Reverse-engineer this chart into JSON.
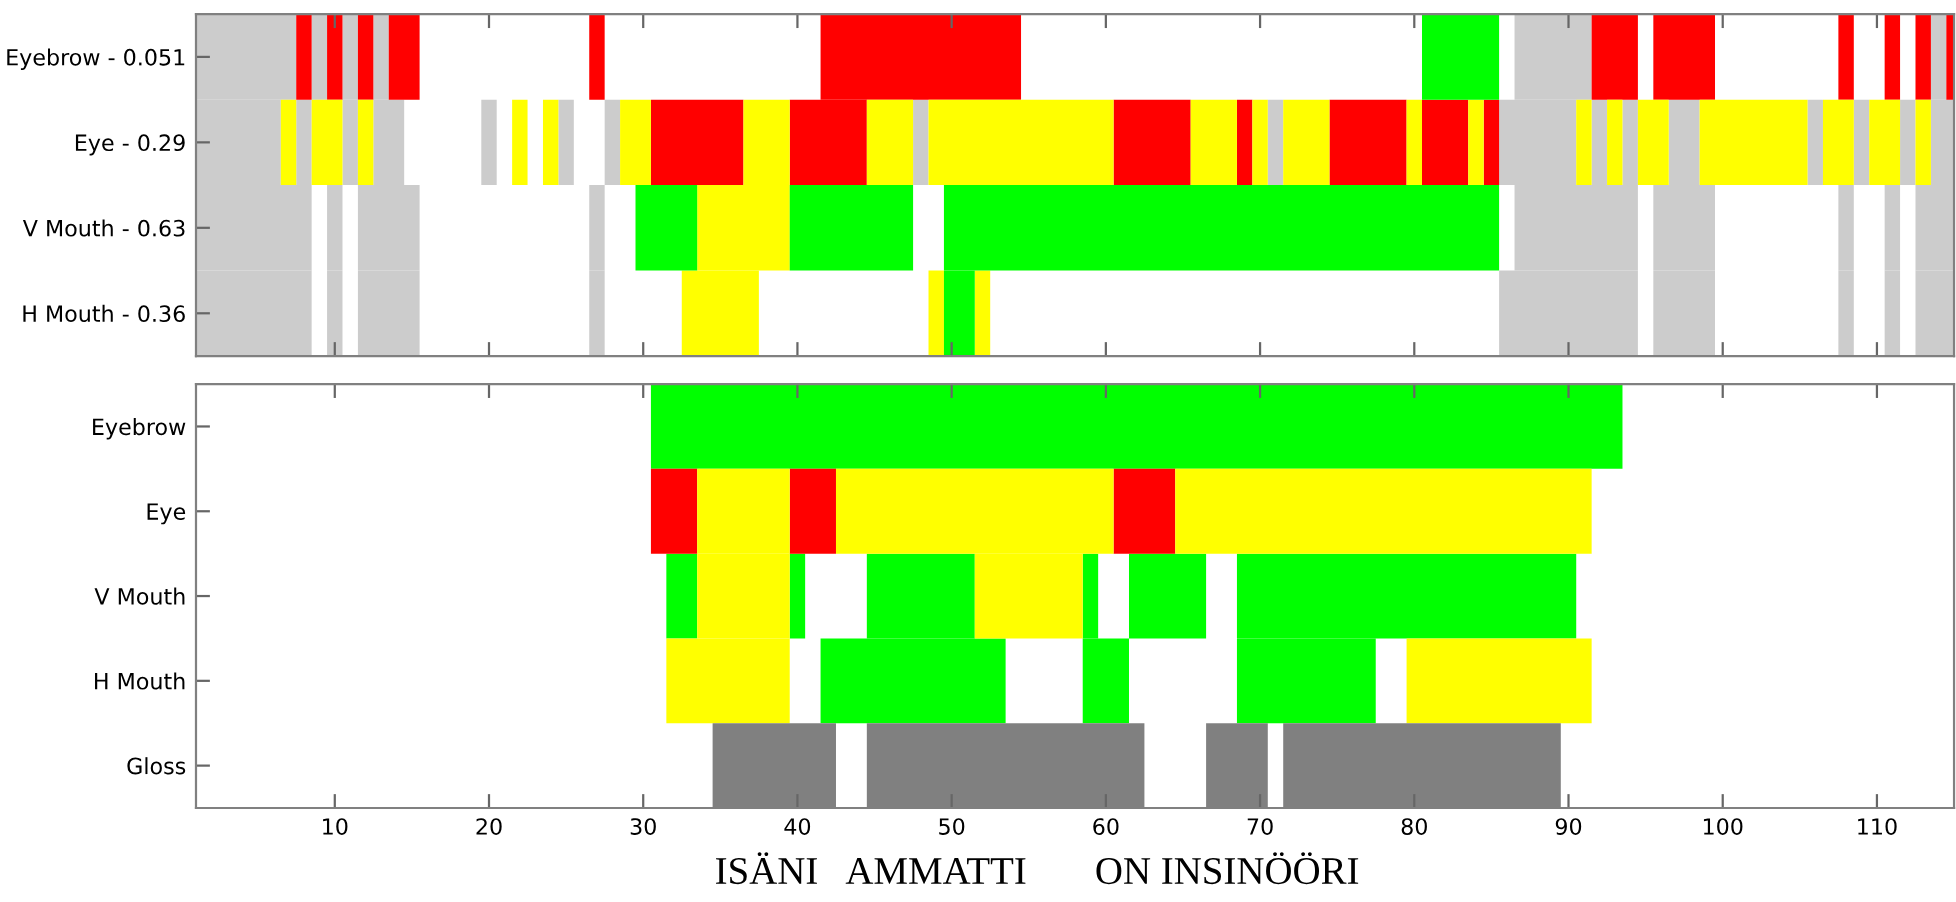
{
  "chart_data": [
    {
      "type": "bar",
      "orientation": "horizontal",
      "categories": [
        "Eyebrow - 0.051",
        "Eye - 0.29",
        "V Mouth - 0.63",
        "H Mouth - 0.36"
      ],
      "xlim": [
        1,
        115
      ],
      "xticks": [
        10,
        20,
        30,
        40,
        50,
        60,
        70,
        80,
        90,
        100,
        110
      ],
      "tick_labels": "y",
      "series": [
        {
          "color": "#cccccc",
          "base": [
            1,
            1,
            1,
            1
          ],
          "values": [
            6.5,
            5.5,
            7.5,
            7.5
          ]
        },
        {
          "color": "#cccccc",
          "base": [
            8.5,
            7.5,
            9.5,
            9.5
          ],
          "values": [
            1,
            1,
            1,
            1
          ]
        },
        {
          "color": "#cccccc",
          "base": [
            10.5,
            10.5,
            11.5,
            11.5
          ],
          "values": [
            1,
            1,
            4,
            4
          ]
        },
        {
          "color": "#cccccc",
          "base": [
            12.5,
            12.5,
            26.5,
            26.5
          ],
          "values": [
            1,
            2,
            1,
            1
          ]
        },
        {
          "color": "#cccccc",
          "base": [
            86.5,
            19.5,
            86.5,
            85.5
          ],
          "values": [
            5,
            1,
            8,
            9
          ]
        },
        {
          "color": "#cccccc",
          "base": [
            113.5,
            24.5,
            95.5,
            95.5
          ],
          "values": [
            1,
            1,
            4,
            4
          ]
        },
        {
          "color": "#cccccc",
          "base": [
            null,
            27.5,
            107.5,
            107.5
          ],
          "values": [
            null,
            1,
            1,
            1
          ]
        },
        {
          "color": "#cccccc",
          "base": [
            null,
            47.5,
            110.5,
            110.5
          ],
          "values": [
            null,
            1,
            1,
            1
          ]
        },
        {
          "color": "#cccccc",
          "base": [
            null,
            70.5,
            112.5,
            112.5
          ],
          "values": [
            null,
            1,
            2.5,
            2.5
          ]
        },
        {
          "color": "#cccccc",
          "base": [
            null,
            85.5,
            null,
            null
          ],
          "values": [
            null,
            5,
            null,
            null
          ]
        },
        {
          "color": "#cccccc",
          "base": [
            null,
            91.5,
            null,
            null
          ],
          "values": [
            null,
            1,
            null,
            null
          ]
        },
        {
          "color": "#cccccc",
          "base": [
            null,
            93.5,
            null,
            null
          ],
          "values": [
            null,
            1,
            null,
            null
          ]
        },
        {
          "color": "#cccccc",
          "base": [
            null,
            96.5,
            null,
            null
          ],
          "values": [
            null,
            2,
            null,
            null
          ]
        },
        {
          "color": "#cccccc",
          "base": [
            null,
            105.5,
            null,
            null
          ],
          "values": [
            null,
            1,
            null,
            null
          ]
        },
        {
          "color": "#cccccc",
          "base": [
            null,
            108.5,
            null,
            null
          ],
          "values": [
            null,
            1,
            null,
            null
          ]
        },
        {
          "color": "#cccccc",
          "base": [
            null,
            111.5,
            null,
            null
          ],
          "values": [
            null,
            1,
            null,
            null
          ]
        },
        {
          "color": "#cccccc",
          "base": [
            null,
            113.5,
            null,
            null
          ],
          "values": [
            null,
            1.5,
            null,
            null
          ]
        },
        {
          "color": "#ff0000",
          "base": [
            7.5,
            30.5,
            null,
            null
          ],
          "values": [
            1,
            6,
            null,
            null
          ]
        },
        {
          "color": "#ff0000",
          "base": [
            9.5,
            39.5,
            null,
            null
          ],
          "values": [
            1,
            5,
            null,
            null
          ]
        },
        {
          "color": "#ff0000",
          "base": [
            11.5,
            60.5,
            null,
            null
          ],
          "values": [
            1,
            5,
            null,
            null
          ]
        },
        {
          "color": "#ff0000",
          "base": [
            13.5,
            68.5,
            null,
            null
          ],
          "values": [
            2,
            1,
            null,
            null
          ]
        },
        {
          "color": "#ff0000",
          "base": [
            26.5,
            74.5,
            null,
            null
          ],
          "values": [
            1,
            5,
            null,
            null
          ]
        },
        {
          "color": "#ff0000",
          "base": [
            41.5,
            80.5,
            null,
            null
          ],
          "values": [
            13,
            3,
            null,
            null
          ]
        },
        {
          "color": "#ff0000",
          "base": [
            91.5,
            84.5,
            null,
            null
          ],
          "values": [
            3,
            1,
            null,
            null
          ]
        },
        {
          "color": "#ff0000",
          "base": [
            95.5,
            null,
            null,
            null
          ],
          "values": [
            4,
            null,
            null,
            null
          ]
        },
        {
          "color": "#ff0000",
          "base": [
            107.5,
            null,
            null,
            null
          ],
          "values": [
            1,
            null,
            null,
            null
          ]
        },
        {
          "color": "#ff0000",
          "base": [
            110.5,
            null,
            null,
            null
          ],
          "values": [
            1,
            null,
            null,
            null
          ]
        },
        {
          "color": "#ff0000",
          "base": [
            112.5,
            null,
            null,
            null
          ],
          "values": [
            1,
            null,
            null,
            null
          ]
        },
        {
          "color": "#ff0000",
          "base": [
            114.5,
            null,
            null,
            null
          ],
          "values": [
            0.5,
            null,
            null,
            null
          ]
        },
        {
          "color": "#ffff00",
          "base": [
            null,
            6.5,
            33.5,
            32.5
          ],
          "values": [
            null,
            1,
            6,
            5
          ]
        },
        {
          "color": "#ffff00",
          "base": [
            null,
            8.5,
            null,
            48.5
          ],
          "values": [
            null,
            2,
            null,
            1
          ]
        },
        {
          "color": "#ffff00",
          "base": [
            null,
            11.5,
            null,
            51.5
          ],
          "values": [
            null,
            1,
            null,
            1
          ]
        },
        {
          "color": "#ffff00",
          "base": [
            null,
            21.5,
            null,
            null
          ],
          "values": [
            null,
            1,
            null,
            null
          ]
        },
        {
          "color": "#ffff00",
          "base": [
            null,
            23.5,
            null,
            null
          ],
          "values": [
            null,
            1,
            null,
            null
          ]
        },
        {
          "color": "#ffff00",
          "base": [
            null,
            28.5,
            null,
            null
          ],
          "values": [
            null,
            2,
            null,
            null
          ]
        },
        {
          "color": "#ffff00",
          "base": [
            null,
            36.5,
            null,
            null
          ],
          "values": [
            null,
            3,
            null,
            null
          ]
        },
        {
          "color": "#ffff00",
          "base": [
            null,
            44.5,
            null,
            null
          ],
          "values": [
            null,
            3,
            null,
            null
          ]
        },
        {
          "color": "#ffff00",
          "base": [
            null,
            48.5,
            null,
            null
          ],
          "values": [
            null,
            12,
            null,
            null
          ]
        },
        {
          "color": "#ffff00",
          "base": [
            null,
            65.5,
            null,
            null
          ],
          "values": [
            null,
            3,
            null,
            null
          ]
        },
        {
          "color": "#ffff00",
          "base": [
            null,
            69.5,
            null,
            null
          ],
          "values": [
            null,
            1,
            null,
            null
          ]
        },
        {
          "color": "#ffff00",
          "base": [
            null,
            71.5,
            null,
            null
          ],
          "values": [
            null,
            3,
            null,
            null
          ]
        },
        {
          "color": "#ffff00",
          "base": [
            null,
            79.5,
            null,
            null
          ],
          "values": [
            null,
            1,
            null,
            null
          ]
        },
        {
          "color": "#ffff00",
          "base": [
            null,
            83.5,
            null,
            null
          ],
          "values": [
            null,
            1,
            null,
            null
          ]
        },
        {
          "color": "#ffff00",
          "base": [
            null,
            90.5,
            null,
            null
          ],
          "values": [
            null,
            1,
            null,
            null
          ]
        },
        {
          "color": "#ffff00",
          "base": [
            null,
            92.5,
            null,
            null
          ],
          "values": [
            null,
            1,
            null,
            null
          ]
        },
        {
          "color": "#ffff00",
          "base": [
            null,
            94.5,
            null,
            null
          ],
          "values": [
            null,
            2,
            null,
            null
          ]
        },
        {
          "color": "#ffff00",
          "base": [
            null,
            98.5,
            null,
            null
          ],
          "values": [
            null,
            7,
            null,
            null
          ]
        },
        {
          "color": "#ffff00",
          "base": [
            null,
            106.5,
            null,
            null
          ],
          "values": [
            null,
            2,
            null,
            null
          ]
        },
        {
          "color": "#ffff00",
          "base": [
            null,
            109.5,
            null,
            null
          ],
          "values": [
            null,
            2,
            null,
            null
          ]
        },
        {
          "color": "#ffff00",
          "base": [
            null,
            112.5,
            null,
            null
          ],
          "values": [
            null,
            1,
            null,
            null
          ]
        },
        {
          "color": "#00ff00",
          "base": [
            80.5,
            null,
            29.5,
            49.5
          ],
          "values": [
            5,
            null,
            4,
            2
          ]
        },
        {
          "color": "#00ff00",
          "base": [
            null,
            null,
            39.5,
            null
          ],
          "values": [
            null,
            null,
            8,
            null
          ]
        },
        {
          "color": "#00ff00",
          "base": [
            null,
            null,
            49.5,
            null
          ],
          "values": [
            null,
            null,
            36,
            null
          ]
        }
      ]
    },
    {
      "type": "bar",
      "orientation": "horizontal",
      "categories": [
        "Eyebrow",
        "Eye",
        "V Mouth",
        "H Mouth",
        "Gloss"
      ],
      "xlim": [
        1,
        115
      ],
      "xticks": [
        10,
        20,
        30,
        40,
        50,
        60,
        70,
        80,
        90,
        100,
        110
      ],
      "annotations": [
        "ISÄNI   AMMATTI       ON INSINÖÖRI"
      ],
      "series": [
        {
          "color": "#00ff00",
          "base": [
            30.5,
            null,
            31.5,
            41.5,
            null
          ],
          "values": [
            63,
            null,
            2,
            12,
            null
          ]
        },
        {
          "color": "#00ff00",
          "base": [
            null,
            null,
            39.5,
            58.5,
            null
          ],
          "values": [
            null,
            null,
            1,
            3,
            null
          ]
        },
        {
          "color": "#00ff00",
          "base": [
            null,
            null,
            44.5,
            68.5,
            null
          ],
          "values": [
            null,
            null,
            7,
            9,
            null
          ]
        },
        {
          "color": "#00ff00",
          "base": [
            null,
            null,
            58.5,
            null,
            null
          ],
          "values": [
            null,
            null,
            1,
            null,
            null
          ]
        },
        {
          "color": "#00ff00",
          "base": [
            null,
            null,
            61.5,
            null,
            null
          ],
          "values": [
            null,
            null,
            5,
            null,
            null
          ]
        },
        {
          "color": "#00ff00",
          "base": [
            null,
            null,
            68.5,
            null,
            null
          ],
          "values": [
            null,
            null,
            22,
            null,
            null
          ]
        },
        {
          "color": "#ff0000",
          "base": [
            null,
            30.5,
            null,
            null,
            null
          ],
          "values": [
            null,
            3,
            null,
            null,
            null
          ]
        },
        {
          "color": "#ff0000",
          "base": [
            null,
            39.5,
            null,
            null,
            null
          ],
          "values": [
            null,
            3,
            null,
            null,
            null
          ]
        },
        {
          "color": "#ff0000",
          "base": [
            null,
            60.5,
            null,
            null,
            null
          ],
          "values": [
            null,
            4,
            null,
            null,
            null
          ]
        },
        {
          "color": "#ffff00",
          "base": [
            null,
            33.5,
            33.5,
            31.5,
            null
          ],
          "values": [
            null,
            6,
            6,
            8,
            null
          ]
        },
        {
          "color": "#ffff00",
          "base": [
            null,
            42.5,
            51.5,
            79.5,
            null
          ],
          "values": [
            null,
            18,
            7,
            12,
            null
          ]
        },
        {
          "color": "#ffff00",
          "base": [
            null,
            64.5,
            null,
            null,
            null
          ],
          "values": [
            null,
            27,
            null,
            null,
            null
          ]
        },
        {
          "color": "#808080",
          "base": [
            null,
            null,
            null,
            null,
            34.5
          ],
          "values": [
            null,
            null,
            null,
            null,
            8
          ]
        },
        {
          "color": "#808080",
          "base": [
            null,
            null,
            null,
            null,
            44.5
          ],
          "values": [
            null,
            null,
            null,
            null,
            18
          ]
        },
        {
          "color": "#808080",
          "base": [
            null,
            null,
            null,
            null,
            66.5
          ],
          "values": [
            null,
            null,
            null,
            null,
            4
          ]
        },
        {
          "color": "#808080",
          "base": [
            null,
            null,
            null,
            null,
            71.5
          ],
          "values": [
            null,
            null,
            null,
            null,
            18
          ]
        }
      ]
    }
  ]
}
